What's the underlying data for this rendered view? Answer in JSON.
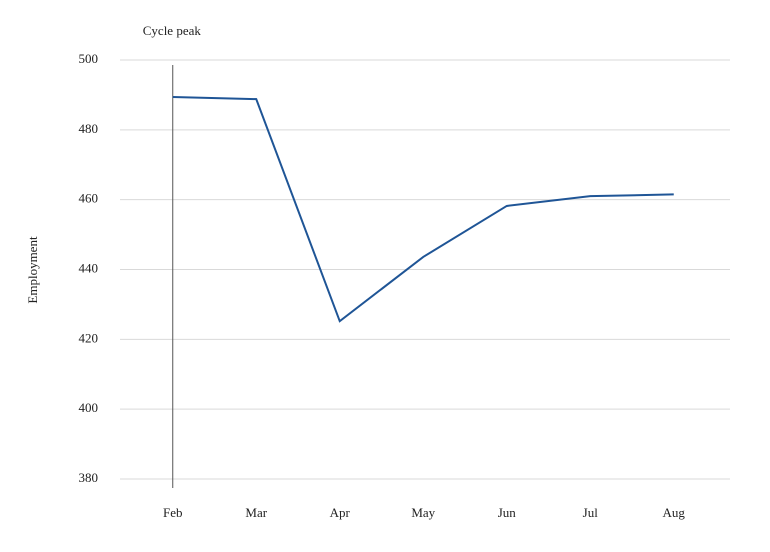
{
  "chart_data": {
    "type": "line",
    "y_label": "Employment",
    "categories": [
      "Feb",
      "Mar",
      "Apr",
      "May",
      "Jun",
      "Jul",
      "Aug"
    ],
    "series": [
      {
        "name": "Employment",
        "color": "#1f5596",
        "values": [
          489.4,
          488.8,
          425.2,
          443.6,
          458.2,
          461.0,
          461.5
        ]
      }
    ],
    "ylim": [
      380,
      500
    ],
    "yticks": [
      380,
      400,
      420,
      440,
      460,
      480,
      500
    ],
    "grid": true,
    "annotations": [
      {
        "label": "Cycle peak",
        "x": "Feb"
      }
    ]
  }
}
